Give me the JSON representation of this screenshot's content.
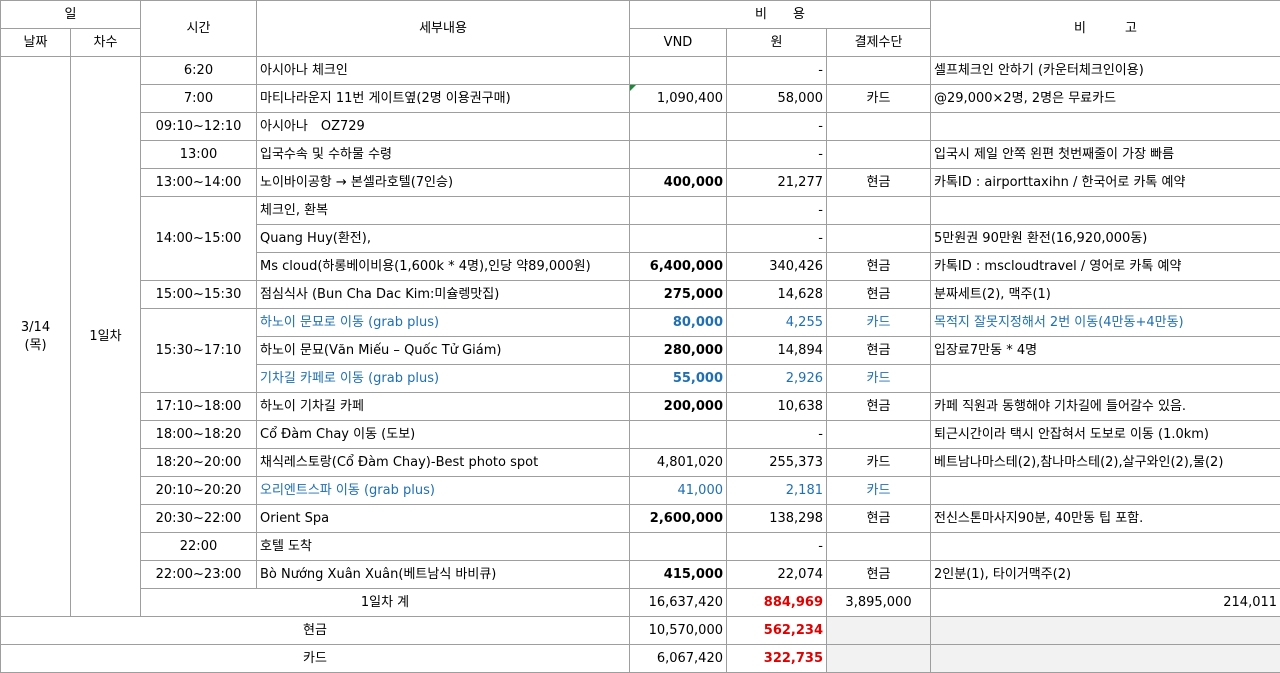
{
  "header": {
    "day_group": "일",
    "date": "날짜",
    "day_no": "차수",
    "time": "시간",
    "detail": "세부내용",
    "cost_group": "비　　용",
    "vnd": "VND",
    "krw": "원",
    "payment": "결제수단",
    "note": "비　　　고"
  },
  "day": {
    "date_line1": "3/14",
    "date_line2": "(목)",
    "day_label": "1일차"
  },
  "rows": [
    {
      "time": "6:20",
      "detail": "아시아나 체크인",
      "vnd": "",
      "krw": "-",
      "pay": "",
      "note": "셀프체크인 안하기 (카운터체크인이용)"
    },
    {
      "time": "7:00",
      "detail": "마티나라운지 11번 게이트옆(2명 이용권구매)",
      "vnd": "1,090,400",
      "krw": "58,000",
      "pay": "카드",
      "note": "@29,000×2명, 2명은 무료카드"
    },
    {
      "time": "09:10~12:10",
      "detail": "아시아나　OZ729",
      "vnd": "",
      "krw": "-",
      "pay": "",
      "note": ""
    },
    {
      "time": "13:00",
      "detail": "입국수속 및 수하물 수령",
      "vnd": "",
      "krw": "-",
      "pay": "",
      "note": "입국시 제일 안쪽 왼편 첫번째줄이 가장 빠름"
    },
    {
      "time": "13:00~14:00",
      "detail": "노이바이공항 → 본셀라호텔(7인승)",
      "vnd": "400,000",
      "krw": "21,277",
      "pay": "현금",
      "note": "카톡ID : airporttaxihn / 한국어로 카톡 예약"
    },
    {
      "time": "14:00~15:00",
      "detail": "체크인, 환복",
      "vnd": "",
      "krw": "-",
      "pay": "",
      "note": ""
    },
    {
      "time": "",
      "detail": "Quang Huy(환전),",
      "vnd": "",
      "krw": "-",
      "pay": "",
      "note": "5만원권 90만원 환전(16,920,000동)"
    },
    {
      "time": "",
      "detail": "Ms cloud(하롱베이비용(1,600k * 4명),인당 약89,000원)",
      "vnd": "6,400,000",
      "krw": "340,426",
      "pay": "현금",
      "note": "카톡ID : mscloudtravel / 영어로 카톡 예약"
    },
    {
      "time": "15:00~15:30",
      "detail": "점심식사 (Bun Cha Dac Kim:미슐렝맛집)",
      "vnd": "275,000",
      "krw": "14,628",
      "pay": "현금",
      "note": "분짜세트(2), 맥주(1)"
    },
    {
      "time": "15:30~17:10",
      "detail": "하노이 문묘로 이동 (grab plus)",
      "vnd": "80,000",
      "krw": "4,255",
      "pay": "카드",
      "note": "목적지 잘못지정해서 2번 이동(4만동+4만동)"
    },
    {
      "time": "",
      "detail": "하노이 문묘(Văn Miếu – Quốc Tử Giám)",
      "vnd": "280,000",
      "krw": "14,894",
      "pay": "현금",
      "note": "입장료7만동 * 4명"
    },
    {
      "time": "",
      "detail": "기차길 카페로 이동 (grab plus)",
      "vnd": "55,000",
      "krw": "2,926",
      "pay": "카드",
      "note": ""
    },
    {
      "time": "17:10~18:00",
      "detail": "하노이 기차길 카페",
      "vnd": "200,000",
      "krw": "10,638",
      "pay": "현금",
      "note": "카페 직원과 동행해야 기차길에 들어갈수 있음."
    },
    {
      "time": "18:00~18:20",
      "detail": "Cổ Đàm Chay 이동 (도보)",
      "vnd": "",
      "krw": "-",
      "pay": "",
      "note": "퇴근시간이라 택시 안잡혀서 도보로 이동 (1.0km)"
    },
    {
      "time": "18:20~20:00",
      "detail": "채식레스토랑(Cổ Đàm Chay)-Best photo spot",
      "vnd": "4,801,020",
      "krw": "255,373",
      "pay": "카드",
      "note": "베트남나마스테(2),참나마스테(2),살구와인(2),물(2)"
    },
    {
      "time": "20:10~20:20",
      "detail": "오리엔트스파 이동 (grab plus)",
      "vnd": "41,000",
      "krw": "2,181",
      "pay": "카드",
      "note": ""
    },
    {
      "time": "20:30~22:00",
      "detail": "Orient Spa",
      "vnd": "2,600,000",
      "krw": "138,298",
      "pay": "현금",
      "note": "전신스톤마사지90분, 40만동 팁 포함."
    },
    {
      "time": "22:00",
      "detail": "호텔 도착",
      "vnd": "",
      "krw": "-",
      "pay": "",
      "note": ""
    },
    {
      "time": "22:00~23:00",
      "detail": "Bò Nướng Xuân Xuân(베트남식 바비큐)",
      "vnd": "415,000",
      "krw": "22,074",
      "pay": "현금",
      "note": "2인분(1), 타이거맥주(2)"
    }
  ],
  "day_total": {
    "label": "1일차 계",
    "vnd": "16,637,420",
    "krw": "884,969",
    "pay": "3,895,000",
    "note": "214,011"
  },
  "cash_total": {
    "label": "현금",
    "vnd": "10,570,000",
    "krw": "562,234"
  },
  "card_total": {
    "label": "카드",
    "vnd": "6,067,420",
    "krw": "322,735"
  }
}
